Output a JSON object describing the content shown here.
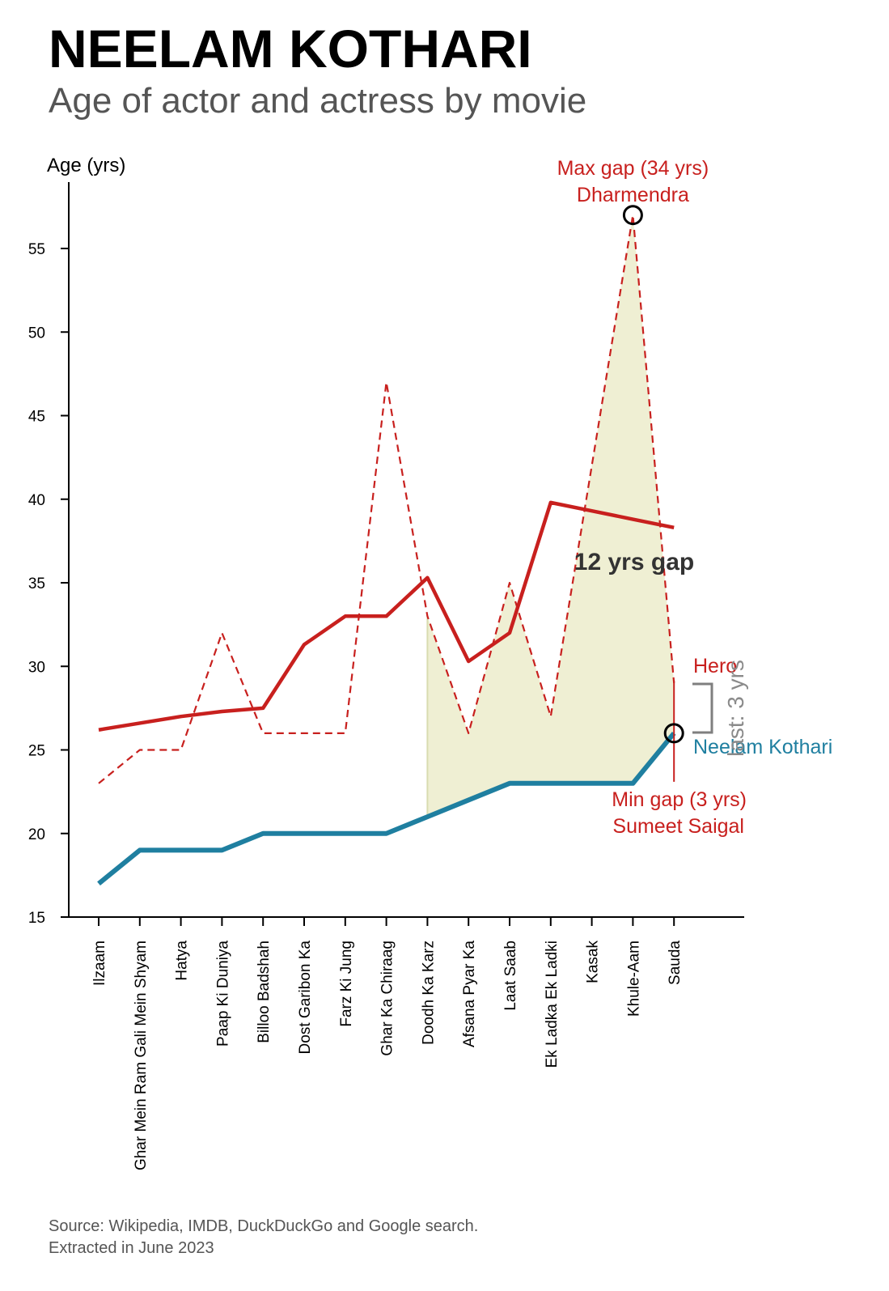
{
  "title": "NEELAM KOTHARI",
  "subtitle": "Age of actor and actress by movie",
  "source": [
    "Source: Wikipedia, IMDB, DuckDuckGo and Google search.",
    "Extracted in June 2023"
  ],
  "colors": {
    "hero": "#c8201e",
    "actress": "#1f7fa0",
    "gap_fill": "#efefd3",
    "axis": "#000000",
    "bracket": "#7f7f7f"
  },
  "chart_data": {
    "type": "line",
    "ylabel": "Age (yrs)",
    "ylim": [
      15,
      59
    ],
    "yticks": [
      15,
      20,
      25,
      30,
      35,
      40,
      45,
      50,
      55
    ],
    "categories": [
      "Ilzaam",
      "Ghar Mein Ram Gali Mein Shyam",
      "Hatya",
      "Paap Ki Duniya",
      "Billoo Badshah",
      "Dost Garibon Ka",
      "Farz Ki Jung",
      "Ghar Ka Chiraag",
      "Doodh Ka Karz",
      "Afsana Pyar Ka",
      "Laat Saab",
      "Ek Ladka Ek Ladki",
      "Kasak",
      "Khule-Aam",
      "Sauda"
    ],
    "series": [
      {
        "name": "Hero",
        "style": "dashed",
        "values": [
          23,
          25,
          25,
          32,
          26,
          26,
          26,
          47,
          33,
          26,
          35,
          27,
          42,
          57,
          29
        ]
      },
      {
        "name": "Hero",
        "style": "smoothed",
        "values": [
          26.2,
          26.6,
          27.0,
          27.3,
          27.5,
          31.3,
          33.0,
          33.0,
          35.3,
          30.3,
          32.0,
          39.8,
          39.3,
          38.8,
          38.3
        ]
      },
      {
        "name": "Neelam Kothari",
        "style": "solid",
        "values": [
          17,
          19,
          19,
          19,
          20,
          20,
          20,
          20,
          21,
          22,
          23,
          23,
          23,
          23,
          26
        ]
      }
    ],
    "annotations": {
      "max_gap": {
        "lines": [
          "Max gap (34 yrs)",
          "Dharmendra"
        ],
        "category": "Khule-Aam",
        "value": 57
      },
      "min_gap": {
        "lines": [
          "Min gap (3 yrs)",
          "Sumeet Saigal"
        ],
        "category": "Sauda",
        "value": 26
      },
      "avg_gap": "12 yrs gap",
      "last_gap": "last: 3 yrs",
      "hero_label": "Hero",
      "actress_label": "Neelam Kothari"
    }
  }
}
